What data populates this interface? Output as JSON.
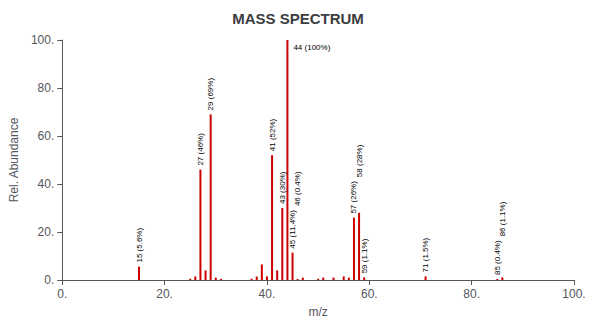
{
  "chart_data": {
    "type": "bar",
    "title": "MASS SPECTRUM",
    "xlabel": "m/z",
    "ylabel": "Rel. Abundance",
    "x": [
      15,
      25,
      26,
      27,
      28,
      29,
      30,
      31,
      37,
      38,
      39,
      40,
      41,
      42,
      43,
      44,
      45,
      46,
      47,
      50,
      51,
      53,
      55,
      56,
      57,
      58,
      59,
      71,
      85,
      86
    ],
    "values": [
      5.6,
      0.5,
      1.5,
      46,
      4.0,
      69,
      1.0,
      0.5,
      0.5,
      1.5,
      6.5,
      1.5,
      52,
      4.0,
      30,
      100,
      11.4,
      0.4,
      1.0,
      0.5,
      1.0,
      1.0,
      1.5,
      1.0,
      26,
      28,
      1.1,
      1.5,
      0.4,
      1.1
    ],
    "color": "#cc0000",
    "xlim": [
      0,
      100
    ],
    "ylim": [
      0,
      100
    ],
    "xticks": [
      {
        "value": 0,
        "label": "0."
      },
      {
        "value": 20,
        "label": "20."
      },
      {
        "value": 40,
        "label": "40."
      },
      {
        "value": 60,
        "label": "60."
      },
      {
        "value": 80,
        "label": "80."
      },
      {
        "value": 100,
        "label": "100."
      }
    ],
    "yticks": [
      {
        "value": 0,
        "label": "0."
      },
      {
        "value": 20,
        "label": "20."
      },
      {
        "value": 40,
        "label": "40."
      },
      {
        "value": 60,
        "label": "60."
      },
      {
        "value": 80,
        "label": "80."
      },
      {
        "value": 100,
        "label": "100."
      }
    ],
    "grid": false,
    "annotations": [
      {
        "x": 15,
        "y": 5.6,
        "text": "15 (5.6%)"
      },
      {
        "x": 27,
        "y": 46,
        "text": "27 (46%)"
      },
      {
        "x": 29,
        "y": 69,
        "text": "29 (69%)"
      },
      {
        "x": 41,
        "y": 52,
        "text": "41 (52%)"
      },
      {
        "x": 43,
        "y": 30,
        "text": "43 (30%)"
      },
      {
        "x": 45,
        "y": 11.4,
        "text": "45 (11.4%)"
      },
      {
        "x": 46,
        "y": 0.4,
        "text": "46 (0.4%)"
      },
      {
        "x": 57,
        "y": 26,
        "text": "57 (26%)"
      },
      {
        "x": 58,
        "y": 28,
        "text": "58 (28%)"
      },
      {
        "x": 59,
        "y": 1.1,
        "text": "59 (1.1%)"
      },
      {
        "x": 71,
        "y": 1.5,
        "text": "71 (1.5%)"
      },
      {
        "x": 85,
        "y": 0.4,
        "text": "85 (0.4%)"
      },
      {
        "x": 86,
        "y": 1.1,
        "text": "86 (1.1%)"
      },
      {
        "x": 44,
        "y": 100,
        "text": "44 (100%)"
      }
    ]
  }
}
